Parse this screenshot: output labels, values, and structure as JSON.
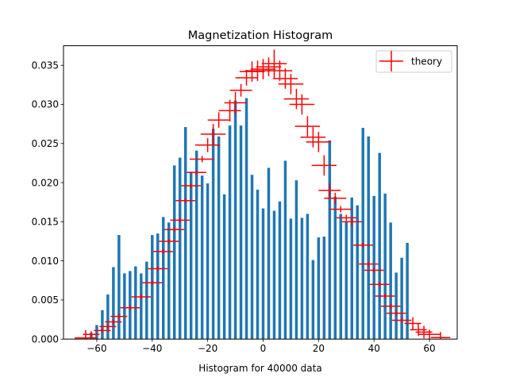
{
  "chart_data": {
    "type": "bar",
    "title": "Magnetization Histogram",
    "xlabel": "Histogram for 40000 data",
    "ylabel": "",
    "xlim": [
      -72,
      70
    ],
    "ylim": [
      0,
      0.0375
    ],
    "x_ticks": [
      -60,
      -40,
      -20,
      0,
      20,
      40,
      60
    ],
    "y_ticks": [
      0,
      0.005,
      0.01,
      0.015,
      0.02,
      0.025,
      0.03,
      0.035
    ],
    "x_tick_labels": [
      "−60",
      "−40",
      "−20",
      "0",
      "20",
      "40",
      "60"
    ],
    "y_tick_labels": [
      "0.000",
      "0.005",
      "0.010",
      "0.015",
      "0.020",
      "0.025",
      "0.030",
      "0.035"
    ],
    "grid": false,
    "legend_position": "top-right",
    "bar_color": "#1f77b4",
    "theory_color": "#ff0000",
    "series": [
      {
        "type": "bar",
        "x": [
          -64,
          -62,
          -60,
          -58,
          -56,
          -54,
          -52,
          -50,
          -48,
          -46,
          -44,
          -42,
          -40,
          -38,
          -36,
          -34,
          -32,
          -30,
          -28,
          -26,
          -24,
          -22,
          -20,
          -18,
          -16,
          -14,
          -12,
          -10,
          -8,
          -6,
          -4,
          -2,
          0,
          2,
          4,
          6,
          8,
          10,
          12,
          14,
          16,
          18,
          20,
          22,
          24,
          26,
          28,
          30,
          32,
          34,
          36,
          38,
          40,
          42,
          44,
          46,
          48,
          50,
          52
        ],
        "values": [
          0.0002,
          0.0008,
          0.0018,
          0.0037,
          0.0057,
          0.0092,
          0.0133,
          0.0084,
          0.0087,
          0.0093,
          0.0084,
          0.0099,
          0.0133,
          0.0135,
          0.0156,
          0.0149,
          0.0222,
          0.0232,
          0.0271,
          0.0214,
          0.0241,
          0.0209,
          0.0199,
          0.0269,
          0.0259,
          0.0185,
          0.0273,
          0.0305,
          0.0273,
          0.0308,
          0.021,
          0.0191,
          0.0167,
          0.0219,
          0.0164,
          0.0176,
          0.0228,
          0.0154,
          0.0203,
          0.0155,
          0.016,
          0.0101,
          0.013,
          0.0131,
          0.0254,
          0.0182,
          0.016,
          0.015,
          0.0181,
          0.0171,
          0.027,
          0.0259,
          0.0183,
          0.0238,
          0.0186,
          0.0149,
          0.0085,
          0.0104,
          0.0123
        ]
      },
      {
        "type": "errorbar",
        "name": "theory",
        "points": [
          {
            "x": -64,
            "y": 0.00015,
            "xerr": 4,
            "yerr": 0.001
          },
          {
            "x": -62,
            "y": 0.0006,
            "xerr": 3,
            "yerr": 0.0004
          },
          {
            "x": -58,
            "y": 0.0011,
            "xerr": 3,
            "yerr": 0.0003
          },
          {
            "x": -56,
            "y": 0.0016,
            "xerr": 3,
            "yerr": 0.0003
          },
          {
            "x": -54,
            "y": 0.0022,
            "xerr": 3,
            "yerr": 0.0003
          },
          {
            "x": -52,
            "y": 0.0029,
            "xerr": 3,
            "yerr": 0.0003
          },
          {
            "x": -48,
            "y": 0.004,
            "xerr": 3.5,
            "yerr": 0.0003
          },
          {
            "x": -44,
            "y": 0.0054,
            "xerr": 3.5,
            "yerr": 0.0003
          },
          {
            "x": -40,
            "y": 0.0072,
            "xerr": 3.5,
            "yerr": 0.0003
          },
          {
            "x": -38,
            "y": 0.009,
            "xerr": 3.5,
            "yerr": 0.0003
          },
          {
            "x": -36,
            "y": 0.0112,
            "xerr": 3.5,
            "yerr": 0.0003
          },
          {
            "x": -34,
            "y": 0.0125,
            "xerr": 3.5,
            "yerr": 0.0003
          },
          {
            "x": -32,
            "y": 0.014,
            "xerr": 3.5,
            "yerr": 0.0003
          },
          {
            "x": -30,
            "y": 0.0152,
            "xerr": 3.5,
            "yerr": 0.0003
          },
          {
            "x": -28,
            "y": 0.0177,
            "xerr": 3.5,
            "yerr": 0.0003
          },
          {
            "x": -26,
            "y": 0.0196,
            "xerr": 3.5,
            "yerr": 0.0003
          },
          {
            "x": -24,
            "y": 0.0213,
            "xerr": 3.5,
            "yerr": 0.0003
          },
          {
            "x": -22,
            "y": 0.023,
            "xerr": 4.5,
            "yerr": 0.0004
          },
          {
            "x": -20,
            "y": 0.0248,
            "xerr": 4.5,
            "yerr": 0.0009
          },
          {
            "x": -18,
            "y": 0.0262,
            "xerr": 4.5,
            "yerr": 0.0013
          },
          {
            "x": -16,
            "y": 0.028,
            "xerr": 4,
            "yerr": 0.001
          },
          {
            "x": -12,
            "y": 0.0292,
            "xerr": 4,
            "yerr": 0.0014
          },
          {
            "x": -10,
            "y": 0.0302,
            "xerr": 4,
            "yerr": 0.0014
          },
          {
            "x": -8,
            "y": 0.0318,
            "xerr": 4,
            "yerr": 0.0008
          },
          {
            "x": -6,
            "y": 0.0334,
            "xerr": 4,
            "yerr": 0.001
          },
          {
            "x": -4,
            "y": 0.0342,
            "xerr": 4.5,
            "yerr": 0.0013
          },
          {
            "x": -2,
            "y": 0.0343,
            "xerr": 4.5,
            "yerr": 0.0013
          },
          {
            "x": 0,
            "y": 0.0345,
            "xerr": 4.5,
            "yerr": 0.0013
          },
          {
            "x": 2,
            "y": 0.0348,
            "xerr": 4.5,
            "yerr": 0.0012
          },
          {
            "x": 4,
            "y": 0.0352,
            "xerr": 4.5,
            "yerr": 0.0018
          },
          {
            "x": 6,
            "y": 0.0343,
            "xerr": 4.5,
            "yerr": 0.0013
          },
          {
            "x": 8,
            "y": 0.0333,
            "xerr": 4.5,
            "yerr": 0.0013
          },
          {
            "x": 10,
            "y": 0.0326,
            "xerr": 4.5,
            "yerr": 0.0013
          },
          {
            "x": 12,
            "y": 0.0307,
            "xerr": 4.5,
            "yerr": 0.0013
          },
          {
            "x": 14,
            "y": 0.03,
            "xerr": 4.5,
            "yerr": 0.0013
          },
          {
            "x": 16,
            "y": 0.0272,
            "xerr": 4.5,
            "yerr": 0.0013
          },
          {
            "x": 18,
            "y": 0.0258,
            "xerr": 4.5,
            "yerr": 0.0013
          },
          {
            "x": 20,
            "y": 0.0252,
            "xerr": 4.5,
            "yerr": 0.0013
          },
          {
            "x": 22,
            "y": 0.0222,
            "xerr": 4.5,
            "yerr": 0.0013
          },
          {
            "x": 24,
            "y": 0.019,
            "xerr": 4,
            "yerr": 0.0009
          },
          {
            "x": 26,
            "y": 0.018,
            "xerr": 4,
            "yerr": 0.0007
          },
          {
            "x": 28,
            "y": 0.0166,
            "xerr": 4,
            "yerr": 0.0004
          },
          {
            "x": 30,
            "y": 0.0155,
            "xerr": 3.5,
            "yerr": 0.0004
          },
          {
            "x": 32,
            "y": 0.015,
            "xerr": 3.5,
            "yerr": 0.0005
          },
          {
            "x": 36,
            "y": 0.012,
            "xerr": 3.5,
            "yerr": 0.0003
          },
          {
            "x": 38,
            "y": 0.0096,
            "xerr": 3.5,
            "yerr": 0.0003
          },
          {
            "x": 40,
            "y": 0.0088,
            "xerr": 3.5,
            "yerr": 0.0003
          },
          {
            "x": 42,
            "y": 0.007,
            "xerr": 3.5,
            "yerr": 0.0003
          },
          {
            "x": 44,
            "y": 0.0055,
            "xerr": 3.5,
            "yerr": 0.0003
          },
          {
            "x": 46,
            "y": 0.0042,
            "xerr": 3.5,
            "yerr": 0.0003
          },
          {
            "x": 48,
            "y": 0.0033,
            "xerr": 3.5,
            "yerr": 0.0003
          },
          {
            "x": 50,
            "y": 0.0024,
            "xerr": 3.5,
            "yerr": 0.0003
          },
          {
            "x": 54,
            "y": 0.002,
            "xerr": 3,
            "yerr": 0.0008
          },
          {
            "x": 56,
            "y": 0.0012,
            "xerr": 3,
            "yerr": 0.0008
          },
          {
            "x": 58,
            "y": 0.0009,
            "xerr": 3,
            "yerr": 0.0008
          },
          {
            "x": 60,
            "y": 0.0006,
            "xerr": 4,
            "yerr": 0.0006
          },
          {
            "x": 64,
            "y": 0.0002,
            "xerr": 3.5,
            "yerr": 0.0007
          }
        ]
      }
    ],
    "legend": [
      "theory"
    ]
  }
}
